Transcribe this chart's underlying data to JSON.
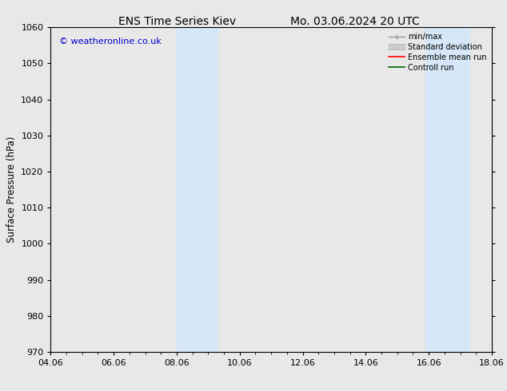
{
  "title_left": "ENS Time Series Kiev",
  "title_right": "Mo. 03.06.2024 20 UTC",
  "ylabel": "Surface Pressure (hPa)",
  "xtick_labels": [
    "04.06",
    "06.06",
    "08.06",
    "10.06",
    "12.06",
    "14.06",
    "16.06",
    "18.06"
  ],
  "xtick_positions": [
    0,
    2,
    4,
    6,
    8,
    10,
    12,
    14
  ],
  "xlim": [
    0,
    14
  ],
  "ylim": [
    970,
    1060
  ],
  "ytick_positions": [
    970,
    980,
    990,
    1000,
    1010,
    1020,
    1030,
    1040,
    1050,
    1060
  ],
  "shaded_regions": [
    {
      "xstart": 4.0,
      "xend": 5.3
    },
    {
      "xstart": 11.9,
      "xend": 13.3
    }
  ],
  "shaded_color": "#d6e8f7",
  "watermark_text": "© weatheronline.co.uk",
  "watermark_color": "#0000cc",
  "bg_color": "#e8e8e8",
  "plot_bg_color": "#e8e8e8",
  "title_fontsize": 10,
  "tick_fontsize": 8,
  "ylabel_fontsize": 8.5
}
